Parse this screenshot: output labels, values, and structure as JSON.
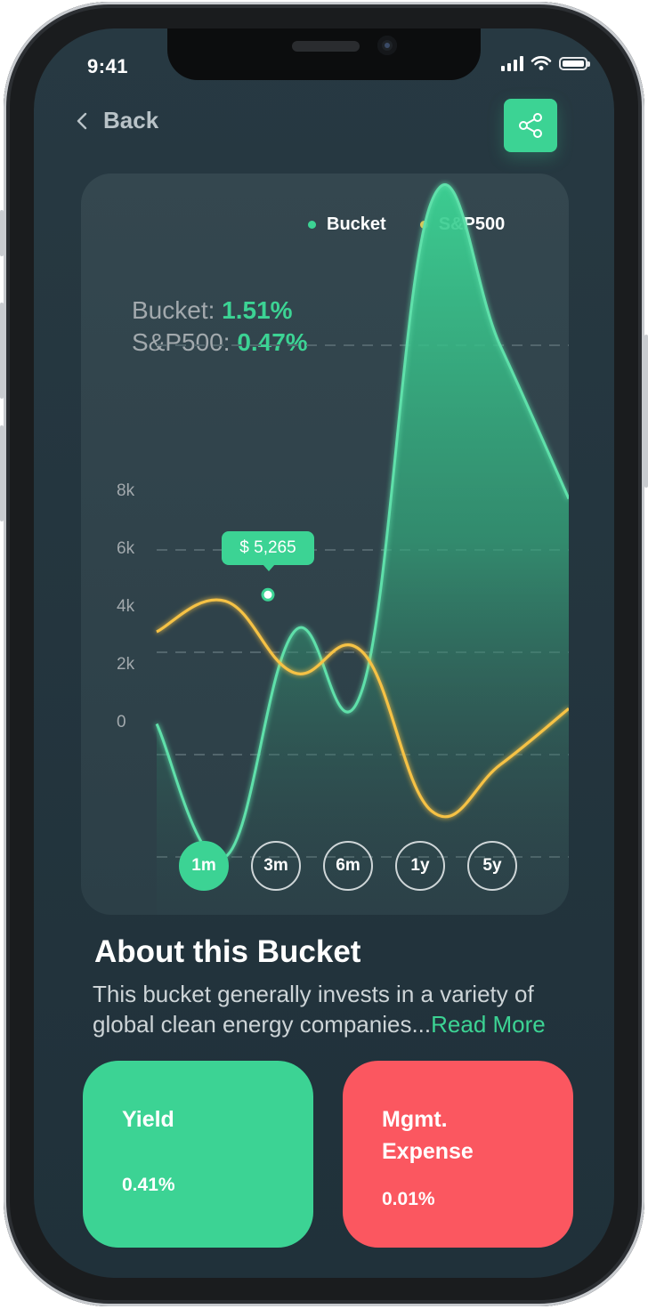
{
  "status_bar": {
    "time": "9:41"
  },
  "nav": {
    "back_label": "Back"
  },
  "chart_card": {
    "legend": [
      {
        "label": "Bucket",
        "color": "#3cd394"
      },
      {
        "label": "S&P500",
        "color": "#f6c244"
      }
    ],
    "performance": [
      {
        "label": "Bucket: ",
        "value": "1.51%"
      },
      {
        "label": "S&P500: ",
        "value": "0.47%"
      }
    ],
    "tooltip": "$ 5,265",
    "ranges": [
      {
        "label": "1m",
        "active": true
      },
      {
        "label": "3m",
        "active": false
      },
      {
        "label": "6m",
        "active": false
      },
      {
        "label": "1y",
        "active": false
      },
      {
        "label": "5y",
        "active": false
      }
    ]
  },
  "chart_data": {
    "type": "area",
    "y_ticks": [
      "8k",
      "6k",
      "4k",
      "2k",
      "0"
    ],
    "ylim": [
      0,
      8000
    ],
    "series": [
      {
        "name": "Bucket",
        "color": "#3cd394",
        "values": [
          2600,
          0,
          4400,
          3300,
          12800,
          10000,
          7000
        ]
      },
      {
        "name": "S&P500",
        "color": "#f6c244",
        "values": [
          4400,
          5000,
          3600,
          4000,
          900,
          1800,
          2900
        ]
      }
    ],
    "highlight": {
      "series": "Bucket",
      "value": 5265,
      "label": "$ 5,265"
    }
  },
  "about": {
    "title": "About this Bucket",
    "text": "This bucket generally invests in a variety of global clean energy companies...",
    "read_more": "Read More"
  },
  "stats": {
    "yield": {
      "label": "Yield",
      "value": "0.41%",
      "color": "#3cd394"
    },
    "mgmt": {
      "label_line1": "Mgmt.",
      "label_line2": "Expense",
      "value": "0.01%",
      "color": "#fb5760"
    }
  }
}
